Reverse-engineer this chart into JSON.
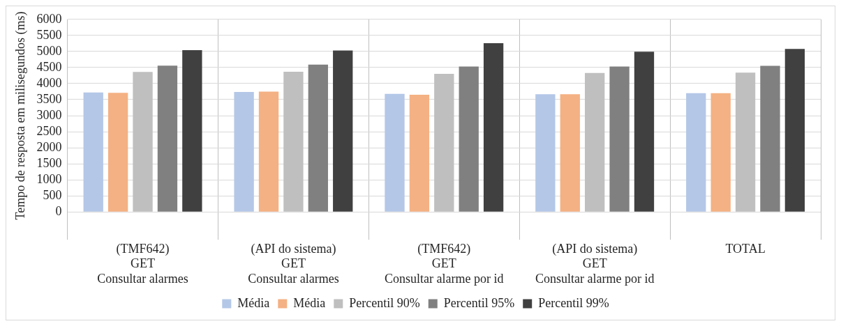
{
  "chart_data": {
    "type": "bar",
    "ylabel": "Tempo de resposta em milisegundos (ms)",
    "categories": [
      "(TMF642)\nGET\nConsultar alarmes",
      "(API do sistema)\nGET\nConsultar alarmes",
      "(TMF642)\nGET\nConsultar alarme por id",
      "(API do sistema)\nGET\nConsultar alarme por id",
      "TOTAL"
    ],
    "series": [
      {
        "name": "Média",
        "color": "#b4c7e7",
        "values": [
          3720,
          3740,
          3680,
          3670,
          3700
        ]
      },
      {
        "name": "Média",
        "color": "#f4b183",
        "values": [
          3710,
          3750,
          3650,
          3670,
          3700
        ]
      },
      {
        "name": "Percentil 90%",
        "color": "#bfbfbf",
        "values": [
          4360,
          4370,
          4300,
          4330,
          4340
        ]
      },
      {
        "name": "Percentil 95%",
        "color": "#808080",
        "values": [
          4560,
          4590,
          4530,
          4530,
          4550
        ]
      },
      {
        "name": "Percentil 99%",
        "color": "#404040",
        "values": [
          5040,
          5030,
          5260,
          4990,
          5080
        ]
      }
    ],
    "ylim": [
      0,
      6000
    ],
    "yticks": [
      0,
      500,
      1000,
      1500,
      2000,
      2500,
      3000,
      3500,
      4000,
      4500,
      5000,
      5500,
      6000
    ],
    "grid": true,
    "legend": "bottom"
  }
}
